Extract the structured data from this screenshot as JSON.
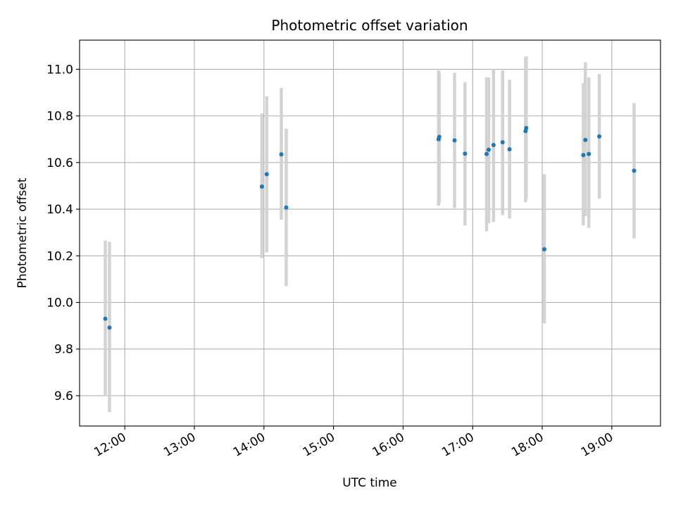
{
  "chart_data": {
    "type": "scatter",
    "title": "Photometric offset variation",
    "xlabel": "UTC time",
    "ylabel": "Photometric offset",
    "x_unit": "hours UTC",
    "xlim": [
      11.35,
      19.7
    ],
    "ylim": [
      9.47,
      11.125
    ],
    "grid": true,
    "xticks": [
      {
        "value": 12,
        "label": "12:00"
      },
      {
        "value": 13,
        "label": "13:00"
      },
      {
        "value": 14,
        "label": "14:00"
      },
      {
        "value": 15,
        "label": "15:00"
      },
      {
        "value": 16,
        "label": "16:00"
      },
      {
        "value": 17,
        "label": "17:00"
      },
      {
        "value": 18,
        "label": "18:00"
      },
      {
        "value": 19,
        "label": "19:00"
      }
    ],
    "yticks": [
      {
        "value": 9.6,
        "label": "9.6"
      },
      {
        "value": 9.8,
        "label": "9.8"
      },
      {
        "value": 10.0,
        "label": "10.0"
      },
      {
        "value": 10.2,
        "label": "10.2"
      },
      {
        "value": 10.4,
        "label": "10.4"
      },
      {
        "value": 10.6,
        "label": "10.6"
      },
      {
        "value": 10.8,
        "label": "10.8"
      },
      {
        "value": 11.0,
        "label": "11.0"
      }
    ],
    "series": [
      {
        "marker_color": "#1f77b4",
        "errorbar_color": "#d3d3d3",
        "points": [
          {
            "x": 11.72,
            "y": 9.93,
            "ylo": 9.6,
            "yhi": 10.265
          },
          {
            "x": 11.78,
            "y": 9.892,
            "ylo": 9.53,
            "yhi": 10.26
          },
          {
            "x": 13.97,
            "y": 10.497,
            "ylo": 10.19,
            "yhi": 10.81
          },
          {
            "x": 14.04,
            "y": 10.55,
            "ylo": 10.215,
            "yhi": 10.885
          },
          {
            "x": 14.25,
            "y": 10.635,
            "ylo": 10.355,
            "yhi": 10.92
          },
          {
            "x": 14.32,
            "y": 10.407,
            "ylo": 10.07,
            "yhi": 10.745
          },
          {
            "x": 16.51,
            "y": 10.7,
            "ylo": 10.415,
            "yhi": 10.995
          },
          {
            "x": 16.52,
            "y": 10.71,
            "ylo": 10.43,
            "yhi": 10.985
          },
          {
            "x": 16.74,
            "y": 10.695,
            "ylo": 10.405,
            "yhi": 10.985
          },
          {
            "x": 16.89,
            "y": 10.638,
            "ylo": 10.33,
            "yhi": 10.945
          },
          {
            "x": 17.2,
            "y": 10.637,
            "ylo": 10.305,
            "yhi": 10.965
          },
          {
            "x": 17.23,
            "y": 10.655,
            "ylo": 10.34,
            "yhi": 10.965
          },
          {
            "x": 17.3,
            "y": 10.675,
            "ylo": 10.345,
            "yhi": 11.0
          },
          {
            "x": 17.43,
            "y": 10.687,
            "ylo": 10.375,
            "yhi": 10.995
          },
          {
            "x": 17.53,
            "y": 10.657,
            "ylo": 10.36,
            "yhi": 10.955
          },
          {
            "x": 17.76,
            "y": 10.735,
            "ylo": 10.43,
            "yhi": 11.05
          },
          {
            "x": 17.77,
            "y": 10.748,
            "ylo": 10.445,
            "yhi": 11.055
          },
          {
            "x": 18.03,
            "y": 10.228,
            "ylo": 9.91,
            "yhi": 10.55
          },
          {
            "x": 18.59,
            "y": 10.632,
            "ylo": 10.33,
            "yhi": 10.94
          },
          {
            "x": 18.62,
            "y": 10.697,
            "ylo": 10.37,
            "yhi": 11.03
          },
          {
            "x": 18.67,
            "y": 10.637,
            "ylo": 10.32,
            "yhi": 10.965
          },
          {
            "x": 18.82,
            "y": 10.712,
            "ylo": 10.445,
            "yhi": 10.98
          },
          {
            "x": 19.32,
            "y": 10.565,
            "ylo": 10.275,
            "yhi": 10.855
          }
        ]
      }
    ]
  }
}
